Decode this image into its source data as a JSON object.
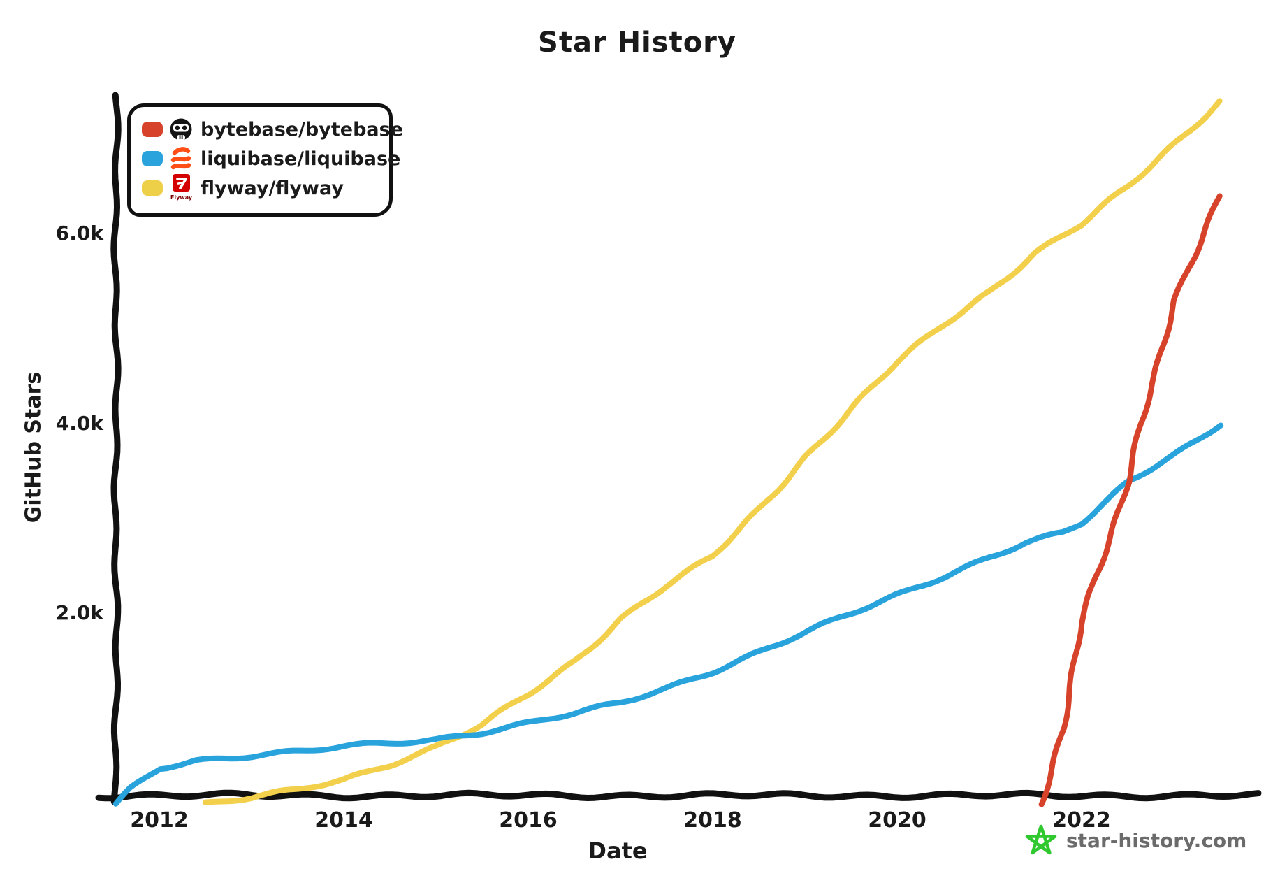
{
  "title": "Star History",
  "legend": {
    "items": [
      {
        "label": "bytebase/bytebase",
        "swatch_color": "#d6432a",
        "icon": "bytebase-logo"
      },
      {
        "label": "liquibase/liquibase",
        "swatch_color": "#2aa2dc",
        "icon": "liquibase-logo"
      },
      {
        "label": "flyway/flyway",
        "swatch_color": "#eecf48",
        "icon": "flyway-logo",
        "icon_text": "Flyway"
      }
    ]
  },
  "axes": {
    "y": {
      "label": "GitHub Stars",
      "ticks": [
        "2.0k",
        "4.0k",
        "6.0k"
      ]
    },
    "x": {
      "label": "Date",
      "ticks": [
        "2012",
        "2014",
        "2016",
        "2018",
        "2020",
        "2022"
      ]
    }
  },
  "watermark": {
    "text": "star-history.com",
    "star_color": "#2fc92f",
    "text_color": "#6b6b6b"
  },
  "chart_data": {
    "type": "line",
    "title": "Star History",
    "xlabel": "Date",
    "ylabel": "GitHub Stars",
    "x_ticks": [
      2012,
      2014,
      2016,
      2018,
      2020,
      2022
    ],
    "y_ticks": [
      2000,
      4000,
      6000
    ],
    "y_tick_labels": [
      "2.0k",
      "4.0k",
      "6.0k"
    ],
    "xlim": [
      2011.3,
      2023.9
    ],
    "ylim": [
      0,
      7500
    ],
    "grid": false,
    "legend_position": "top-left",
    "series": [
      {
        "name": "bytebase/bytebase",
        "color": "#d6432a",
        "points": [
          [
            2021.55,
            0
          ],
          [
            2021.65,
            300
          ],
          [
            2021.8,
            800
          ],
          [
            2021.9,
            1300
          ],
          [
            2022.0,
            1900
          ],
          [
            2022.15,
            2400
          ],
          [
            2022.3,
            2800
          ],
          [
            2022.5,
            3400
          ],
          [
            2022.65,
            4000
          ],
          [
            2022.8,
            4500
          ],
          [
            2023.0,
            5300
          ],
          [
            2023.15,
            5650
          ],
          [
            2023.3,
            5950
          ],
          [
            2023.5,
            6400
          ]
        ]
      },
      {
        "name": "liquibase/liquibase",
        "color": "#29a3dc",
        "points": [
          [
            2011.53,
            0
          ],
          [
            2011.7,
            160
          ],
          [
            2012.0,
            380
          ],
          [
            2012.4,
            460
          ],
          [
            2013.0,
            510
          ],
          [
            2013.6,
            555
          ],
          [
            2014.0,
            600
          ],
          [
            2014.5,
            640
          ],
          [
            2015.0,
            680
          ],
          [
            2015.5,
            760
          ],
          [
            2016.0,
            850
          ],
          [
            2016.5,
            950
          ],
          [
            2017.0,
            1060
          ],
          [
            2017.5,
            1220
          ],
          [
            2018.0,
            1400
          ],
          [
            2018.5,
            1600
          ],
          [
            2019.0,
            1800
          ],
          [
            2019.5,
            2000
          ],
          [
            2020.0,
            2200
          ],
          [
            2020.5,
            2400
          ],
          [
            2021.0,
            2600
          ],
          [
            2021.4,
            2750
          ],
          [
            2021.8,
            2850
          ],
          [
            2022.0,
            2950
          ],
          [
            2022.3,
            3200
          ],
          [
            2022.5,
            3400
          ],
          [
            2023.0,
            3680
          ],
          [
            2023.5,
            4000
          ]
        ]
      },
      {
        "name": "flyway/flyway",
        "color": "#f2d04b",
        "points": [
          [
            2012.5,
            0
          ],
          [
            2013.0,
            60
          ],
          [
            2013.5,
            150
          ],
          [
            2014.0,
            260
          ],
          [
            2014.5,
            420
          ],
          [
            2015.0,
            600
          ],
          [
            2015.5,
            830
          ],
          [
            2016.0,
            1150
          ],
          [
            2016.5,
            1500
          ],
          [
            2017.0,
            1950
          ],
          [
            2017.5,
            2300
          ],
          [
            2018.0,
            2600
          ],
          [
            2018.5,
            3100
          ],
          [
            2019.0,
            3650
          ],
          [
            2019.5,
            4150
          ],
          [
            2020.0,
            4650
          ],
          [
            2020.5,
            5050
          ],
          [
            2021.0,
            5400
          ],
          [
            2021.5,
            5800
          ],
          [
            2022.0,
            6100
          ],
          [
            2022.5,
            6500
          ],
          [
            2023.0,
            6950
          ],
          [
            2023.5,
            7400
          ]
        ]
      }
    ]
  }
}
